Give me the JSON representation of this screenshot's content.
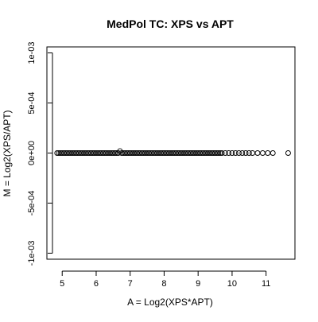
{
  "chart_data": {
    "type": "scatter",
    "title": "MedPol TC: XPS vs APT",
    "xlabel": "A = Log2(XPS*APT)",
    "ylabel": "M = Log2(XPS/APT)",
    "xlim": [
      4.55,
      11.85
    ],
    "ylim": [
      -0.00106,
      0.00106
    ],
    "xticks": [
      5,
      6,
      7,
      8,
      9,
      10,
      11
    ],
    "xtick_labels": [
      "5",
      "6",
      "7",
      "8",
      "9",
      "10",
      "11"
    ],
    "yticks": [
      -0.001,
      -0.0005,
      0,
      0.0005,
      0.001
    ],
    "ytick_labels": [
      "-1e-03",
      "-5e-04",
      "0e+00",
      "5e-04",
      "1e-03"
    ],
    "grid": false,
    "point_style": "open circle",
    "series": [
      {
        "points": [
          {
            "x": 4.85,
            "y": 0
          },
          {
            "x": 4.9,
            "y": 0
          },
          {
            "x": 4.95,
            "y": 0
          },
          {
            "x": 5.0,
            "y": 0
          },
          {
            "x": 5.05,
            "y": 0
          },
          {
            "x": 5.1,
            "y": 0
          },
          {
            "x": 5.15,
            "y": 0
          },
          {
            "x": 5.2,
            "y": 0
          },
          {
            "x": 5.25,
            "y": 0
          },
          {
            "x": 5.3,
            "y": 0
          },
          {
            "x": 5.35,
            "y": 0
          },
          {
            "x": 5.4,
            "y": 0
          },
          {
            "x": 5.45,
            "y": 0
          },
          {
            "x": 5.5,
            "y": 0
          },
          {
            "x": 5.55,
            "y": 0
          },
          {
            "x": 5.6,
            "y": 0
          },
          {
            "x": 5.65,
            "y": 0
          },
          {
            "x": 5.7,
            "y": 0
          },
          {
            "x": 5.75,
            "y": 0
          },
          {
            "x": 5.8,
            "y": 0
          },
          {
            "x": 5.85,
            "y": 0
          },
          {
            "x": 5.9,
            "y": 0
          },
          {
            "x": 5.95,
            "y": 0
          },
          {
            "x": 6.0,
            "y": 0
          },
          {
            "x": 6.05,
            "y": 0
          },
          {
            "x": 6.1,
            "y": 0
          },
          {
            "x": 6.15,
            "y": 0
          },
          {
            "x": 6.2,
            "y": 0
          },
          {
            "x": 6.25,
            "y": 0
          },
          {
            "x": 6.3,
            "y": 0
          },
          {
            "x": 6.35,
            "y": 0
          },
          {
            "x": 6.4,
            "y": 0
          },
          {
            "x": 6.45,
            "y": 0
          },
          {
            "x": 6.5,
            "y": 0
          },
          {
            "x": 6.55,
            "y": 0
          },
          {
            "x": 6.6,
            "y": 0
          },
          {
            "x": 6.65,
            "y": 0
          },
          {
            "x": 6.7,
            "y": 2e-05
          },
          {
            "x": 6.75,
            "y": 0
          },
          {
            "x": 6.8,
            "y": 0
          },
          {
            "x": 6.85,
            "y": 0
          },
          {
            "x": 6.9,
            "y": 0
          },
          {
            "x": 6.95,
            "y": 0
          },
          {
            "x": 7.0,
            "y": 0
          },
          {
            "x": 7.05,
            "y": 0
          },
          {
            "x": 7.1,
            "y": 0
          },
          {
            "x": 7.15,
            "y": 0
          },
          {
            "x": 7.2,
            "y": 0
          },
          {
            "x": 7.25,
            "y": 0
          },
          {
            "x": 7.3,
            "y": 0
          },
          {
            "x": 7.35,
            "y": 0
          },
          {
            "x": 7.4,
            "y": 0
          },
          {
            "x": 7.45,
            "y": 0
          },
          {
            "x": 7.5,
            "y": 0
          },
          {
            "x": 7.55,
            "y": 0
          },
          {
            "x": 7.6,
            "y": 0
          },
          {
            "x": 7.65,
            "y": 0
          },
          {
            "x": 7.7,
            "y": 0
          },
          {
            "x": 7.75,
            "y": 0
          },
          {
            "x": 7.8,
            "y": 0
          },
          {
            "x": 7.85,
            "y": 0
          },
          {
            "x": 7.9,
            "y": 0
          },
          {
            "x": 7.95,
            "y": 0
          },
          {
            "x": 8.0,
            "y": 0
          },
          {
            "x": 8.05,
            "y": 0
          },
          {
            "x": 8.1,
            "y": 0
          },
          {
            "x": 8.15,
            "y": 0
          },
          {
            "x": 8.2,
            "y": 0
          },
          {
            "x": 8.25,
            "y": 0
          },
          {
            "x": 8.3,
            "y": 0
          },
          {
            "x": 8.35,
            "y": 0
          },
          {
            "x": 8.4,
            "y": 0
          },
          {
            "x": 8.45,
            "y": 0
          },
          {
            "x": 8.5,
            "y": 0
          },
          {
            "x": 8.55,
            "y": 0
          },
          {
            "x": 8.6,
            "y": 0
          },
          {
            "x": 8.65,
            "y": 0
          },
          {
            "x": 8.7,
            "y": 0
          },
          {
            "x": 8.75,
            "y": 0
          },
          {
            "x": 8.8,
            "y": 0
          },
          {
            "x": 8.85,
            "y": 0
          },
          {
            "x": 8.9,
            "y": 0
          },
          {
            "x": 8.95,
            "y": 0
          },
          {
            "x": 9.0,
            "y": 0
          },
          {
            "x": 9.05,
            "y": 0
          },
          {
            "x": 9.1,
            "y": 0
          },
          {
            "x": 9.15,
            "y": 0
          },
          {
            "x": 9.2,
            "y": 0
          },
          {
            "x": 9.25,
            "y": 0
          },
          {
            "x": 9.3,
            "y": 0
          },
          {
            "x": 9.35,
            "y": 0
          },
          {
            "x": 9.4,
            "y": 0
          },
          {
            "x": 9.45,
            "y": 0
          },
          {
            "x": 9.5,
            "y": 0
          },
          {
            "x": 9.55,
            "y": 0
          },
          {
            "x": 9.6,
            "y": 0
          },
          {
            "x": 9.65,
            "y": 0
          },
          {
            "x": 9.7,
            "y": 0
          },
          {
            "x": 9.8,
            "y": 0
          },
          {
            "x": 9.9,
            "y": 0
          },
          {
            "x": 10.0,
            "y": 0
          },
          {
            "x": 10.1,
            "y": 0
          },
          {
            "x": 10.2,
            "y": 0
          },
          {
            "x": 10.3,
            "y": 0
          },
          {
            "x": 10.4,
            "y": 0
          },
          {
            "x": 10.5,
            "y": 0
          },
          {
            "x": 10.6,
            "y": 0
          },
          {
            "x": 10.75,
            "y": 0
          },
          {
            "x": 10.9,
            "y": 0
          },
          {
            "x": 11.05,
            "y": 0
          },
          {
            "x": 11.2,
            "y": 0
          },
          {
            "x": 11.65,
            "y": 0
          }
        ]
      }
    ]
  }
}
